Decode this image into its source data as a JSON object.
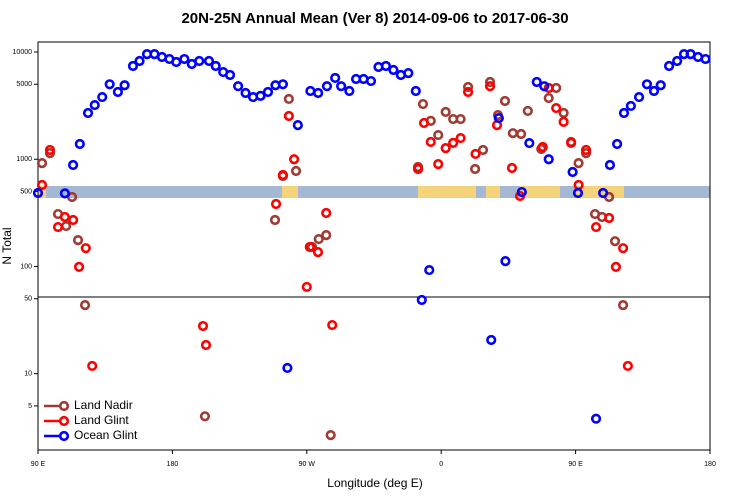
{
  "chart_data": {
    "type": "scatter",
    "title": "20N-25N Annual Mean (Ver 8)   2014-09-06 to 2017-06-30",
    "xlabel": "Longitude (deg E)",
    "ylabel": "N Total",
    "xlim": [
      90,
      540
    ],
    "xticks": [
      {
        "value": 90,
        "label": "90 E"
      },
      180,
      {
        "value": 270,
        "label": "90 W"
      },
      {
        "value": 360,
        "label": "0"
      },
      {
        "value": 450,
        "label": "90 E"
      },
      {
        "value": 540,
        "label": "180"
      }
    ],
    "ylim": [
      1.94,
      12400
    ],
    "ylog": true,
    "yticks": [
      5,
      10,
      50,
      100,
      500,
      1000,
      5000,
      10000
    ],
    "legend": "bottomleft",
    "series": [
      {
        "name": "Land Nadir",
        "color": "#a03a32",
        "x": [
          92.7,
          98,
          103.4,
          108.8,
          112.8,
          116.8,
          121.5,
          201.8,
          248.7,
          254,
          258,
          262.8,
          273.5,
          278,
          283,
          286,
          344.5,
          347.8,
          353,
          358,
          363,
          368,
          373,
          378,
          382.7,
          388,
          392.7,
          398,
          402.7,
          408,
          413.5,
          418,
          427,
          432,
          437,
          442,
          447,
          452,
          457,
          463,
          467.7,
          472.4,
          476.4,
          481.8
        ],
        "values": [
          920,
          1140,
          308,
          238,
          444,
          176,
          43.6,
          4,
          271,
          697,
          3650,
          777,
          152,
          180,
          196,
          2.67,
          846,
          3270,
          2280,
          1680,
          2760,
          2370,
          2370,
          4720,
          810,
          1220,
          5250,
          2580,
          3490,
          1750,
          1720,
          2820,
          1245,
          3720,
          4620,
          2700,
          1450,
          920,
          1140,
          308,
          289,
          444,
          172,
          43.6
        ]
      },
      {
        "name": "Land Glint",
        "color": "#ff0000",
        "x": [
          92.7,
          98,
          103.4,
          108,
          113.5,
          117.5,
          122,
          126.3,
          200.5,
          202.5,
          249.4,
          254,
          258,
          261.5,
          270,
          272,
          277.5,
          283,
          287,
          344.5,
          348.5,
          353,
          358,
          363,
          368,
          373,
          378,
          383,
          392.7,
          397.4,
          407.4,
          412.8,
          428,
          432,
          437,
          442,
          447,
          452,
          457,
          463.7,
          472.4,
          477,
          481.8,
          485
        ],
        "values": [
          575,
          1220,
          233,
          289,
          271,
          99,
          148,
          11.8,
          27.8,
          18.5,
          382,
          713,
          2530,
          1000,
          64.4,
          152,
          136,
          315,
          28.4,
          810,
          2180,
          1450,
          900,
          1270,
          1420,
          1575,
          4240,
          1120,
          4800,
          2080,
          828,
          454,
          1300,
          4620,
          3000,
          2230,
          1420,
          575,
          1220,
          233,
          283,
          99,
          148,
          11.8
        ]
      },
      {
        "name": "Ocean Glint",
        "color": "#0000ff",
        "x": [
          90,
          108,
          113.5,
          118,
          123.5,
          128,
          133,
          138,
          143.5,
          148,
          153.6,
          158,
          163,
          168,
          173,
          178,
          182.6,
          188,
          193,
          198,
          204.5,
          209,
          214,
          218.6,
          224,
          229,
          234,
          239,
          244,
          249,
          254,
          257,
          264,
          272.4,
          277.6,
          283.5,
          289,
          293,
          298.5,
          303,
          308,
          313,
          318,
          323,
          328,
          333,
          338,
          343,
          347,
          352,
          393.5,
          398.6,
          403,
          414,
          419,
          424,
          429,
          432,
          448,
          451.6,
          463.7,
          468.4,
          473,
          477.8,
          482.4,
          487,
          492.5,
          497.8,
          502.5,
          507,
          512.6,
          518,
          522.6,
          527,
          532,
          537
        ],
        "values": [
          484,
          480,
          883,
          1387,
          2700,
          3200,
          3800,
          5000,
          4240,
          4900,
          7400,
          8240,
          9560,
          9560,
          8980,
          8600,
          8070,
          8600,
          7730,
          8240,
          8240,
          7400,
          6500,
          6100,
          4800,
          4150,
          3800,
          3900,
          4240,
          4900,
          5000,
          11.3,
          2080,
          4330,
          4150,
          4800,
          5730,
          4800,
          4330,
          5600,
          5600,
          5360,
          7250,
          7400,
          6800,
          6100,
          6360,
          4330,
          48.6,
          92.5,
          20.6,
          2420,
          112,
          494,
          1415,
          5250,
          4800,
          1000,
          760,
          484,
          3.8,
          484,
          883,
          1387,
          2700,
          3140,
          3800,
          5000,
          4330,
          4900,
          7400,
          8240,
          9560,
          9560,
          8980,
          8600
        ]
      }
    ]
  }
}
